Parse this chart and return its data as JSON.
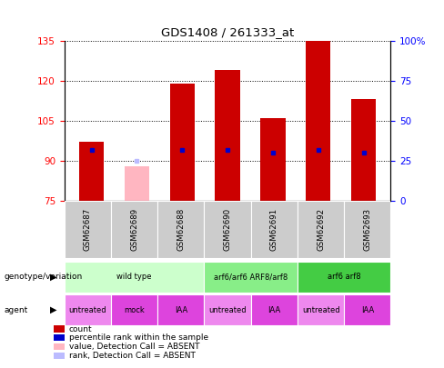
{
  "title": "GDS1408 / 261333_at",
  "samples": [
    "GSM62687",
    "GSM62689",
    "GSM62688",
    "GSM62690",
    "GSM62691",
    "GSM62692",
    "GSM62693"
  ],
  "count_values": [
    97,
    null,
    119,
    124,
    106,
    135,
    113
  ],
  "absent_value": 88,
  "absent_rank_value": 90,
  "percentile_ranks": [
    94,
    null,
    94,
    94,
    93,
    94,
    93
  ],
  "ylim_left": [
    75,
    135
  ],
  "ylim_right": [
    0,
    100
  ],
  "left_yticks": [
    75,
    90,
    105,
    120,
    135
  ],
  "right_yticks": [
    0,
    25,
    50,
    75,
    100
  ],
  "bar_color_red": "#CC0000",
  "bar_color_pink": "#FFB6C1",
  "bar_color_blue": "#0000CC",
  "bar_color_lightblue": "#BBBBFF",
  "bar_width": 0.55,
  "genotype_groups": [
    {
      "label": "wild type",
      "cols": [
        0,
        1,
        2
      ],
      "color": "#CCFFCC"
    },
    {
      "label": "arf6/arf6 ARF8/arf8",
      "cols": [
        3,
        4
      ],
      "color": "#88EE88"
    },
    {
      "label": "arf6 arf8",
      "cols": [
        5,
        6
      ],
      "color": "#44CC44"
    }
  ],
  "agent_labels": [
    "untreated",
    "mock",
    "IAA",
    "untreated",
    "IAA",
    "untreated",
    "IAA"
  ],
  "agent_colors": [
    "#EE88EE",
    "#DD44DD",
    "#DD44DD",
    "#EE88EE",
    "#DD44DD",
    "#EE88EE",
    "#DD44DD"
  ],
  "legend_items": [
    {
      "color": "#CC0000",
      "label": "count"
    },
    {
      "color": "#0000CC",
      "label": "percentile rank within the sample"
    },
    {
      "color": "#FFB6C1",
      "label": "value, Detection Call = ABSENT"
    },
    {
      "color": "#BBBBFF",
      "label": "rank, Detection Call = ABSENT"
    }
  ]
}
